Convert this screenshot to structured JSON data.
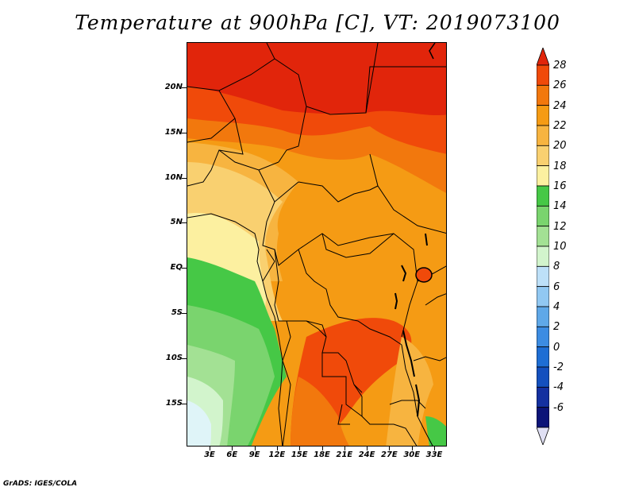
{
  "title": "Temperature at 900hPa [C], VT: 2019073100",
  "credit": "GrADS: IGES/COLA",
  "latitude_labels": [
    "20N",
    "15N",
    "10N",
    "5N",
    "EQ",
    "5S",
    "10S",
    "15S"
  ],
  "longitude_labels": [
    "3E",
    "6E",
    "9E",
    "12E",
    "15E",
    "18E",
    "21E",
    "24E",
    "27E",
    "30E",
    "33E"
  ],
  "colorbar": {
    "labels": [
      "28",
      "26",
      "24",
      "22",
      "20",
      "18",
      "16",
      "14",
      "12",
      "10",
      "8",
      "6",
      "4",
      "2",
      "0",
      "-2",
      "-4",
      "-6"
    ],
    "colors": [
      "#e1250b",
      "#f04a0a",
      "#f2780d",
      "#f59b14",
      "#f7b440",
      "#f9d070",
      "#fcf0a0",
      "#46c846",
      "#7ad46e",
      "#a3e194",
      "#d2f4cc",
      "#bde0f8",
      "#91c8f2",
      "#5fa8e8",
      "#3c8ce2",
      "#1e6ed4",
      "#1450be",
      "#1430a0",
      "#0c1478",
      "#e0e0f4"
    ]
  },
  "chart_data": {
    "type": "heatmap",
    "title": "Temperature at 900hPa [C], VT: 2019073100",
    "variable": "Temperature at 900hPa",
    "units": "C",
    "valid_time": "2019073100",
    "x_ticks": [
      "3E",
      "6E",
      "9E",
      "12E",
      "15E",
      "18E",
      "21E",
      "24E",
      "27E",
      "30E",
      "33E"
    ],
    "y_ticks": [
      "20N",
      "15N",
      "10N",
      "5N",
      "EQ",
      "5S",
      "10S",
      "15S"
    ],
    "lon_range": [
      0,
      34
    ],
    "lat_range": [
      -20,
      24
    ],
    "color_levels": [
      -6,
      -4,
      -2,
      0,
      2,
      4,
      6,
      8,
      10,
      12,
      14,
      16,
      18,
      20,
      22,
      24,
      26,
      28
    ]
  }
}
